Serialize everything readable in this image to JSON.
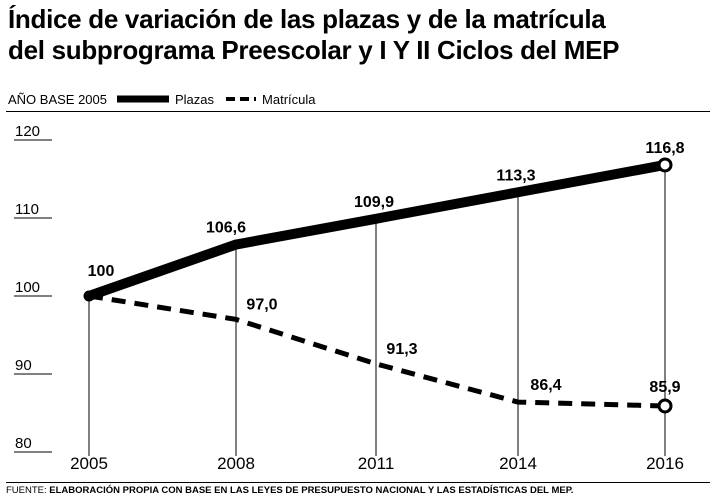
{
  "title_line1": "Índice de variación de las plazas y de la matrícula",
  "title_line2": "del subprograma Preescolar y I Y II Ciclos del MEP",
  "legend": {
    "base_label": "AÑO BASE 2005",
    "series1": "Plazas",
    "series2": "Matrícula"
  },
  "footer": {
    "prefix": "FUENTE:",
    "text": "ELABORACIÓN PROPIA CON BASE EN LAS LEYES DE PRESUPUESTO NACIONAL Y LAS ESTADÍSTICAS DEL MEP."
  },
  "chart_data": {
    "type": "line",
    "categories": [
      "2005",
      "2008",
      "2011",
      "2014",
      "2016"
    ],
    "series": [
      {
        "name": "Plazas",
        "values": [
          100,
          106.6,
          109.9,
          113.3,
          116.8
        ],
        "labels": [
          "100",
          "106,6",
          "109,9",
          "113,3",
          "116,8"
        ],
        "style": "solid"
      },
      {
        "name": "Matrícula",
        "values": [
          100,
          97.0,
          91.3,
          86.4,
          85.9
        ],
        "labels": [
          "",
          "97,0",
          "91,3",
          "86,4",
          "85,9"
        ],
        "style": "dashed"
      }
    ],
    "yticks": [
      80,
      90,
      100,
      110,
      120
    ],
    "ylim": [
      80,
      120
    ],
    "xlabel": "",
    "ylabel": "",
    "grid": "vertical",
    "legend": "top-left"
  }
}
